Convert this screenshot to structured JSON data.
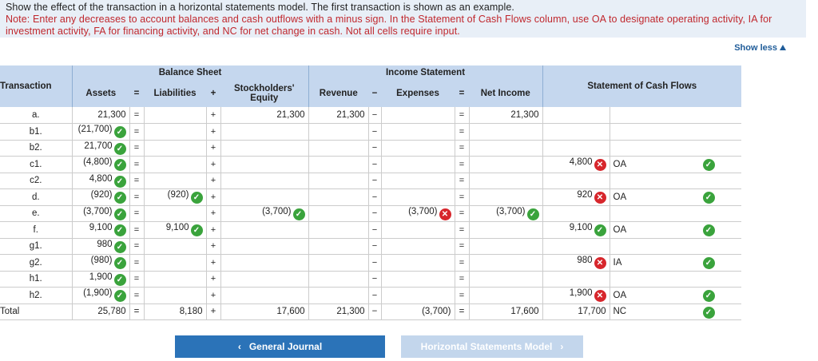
{
  "instructions": {
    "main": "Show the effect of the transaction in a horizontal statements model. The first transaction is shown as an example.",
    "note": "Note: Enter any decreases to account balances and cash outflows with a minus sign. In the Statement of Cash Flows column, use OA to designate operating activity, IA for investment activity, FA for financing activity, and NC for net change in cash. Not all cells require input."
  },
  "show_less": "Show less",
  "headers": {
    "transaction": "Transaction",
    "balance_sheet": "Balance Sheet",
    "income_statement": "Income Statement",
    "assets": "Assets",
    "eq": "=",
    "liabilities": "Liabilities",
    "plus": "+",
    "stockholders_equity": "Stockholders' Equity",
    "revenue": "Revenue",
    "minus": "−",
    "expenses": "Expenses",
    "net_income": "Net Income",
    "cash_flows": "Statement of Cash Flows"
  },
  "rows": [
    {
      "label": "a.",
      "assets": "21,300",
      "assets_status": "",
      "liab": "",
      "liab_status": "",
      "se": "21,300",
      "se_status": "",
      "rev": "21,300",
      "exp": "",
      "exp_status": "",
      "ni": "21,300",
      "ni_status": "",
      "cf": "",
      "cf_status": "",
      "act": "",
      "act_status": ""
    },
    {
      "label": "b1.",
      "assets": "(21,700)",
      "assets_status": "check",
      "liab": "",
      "liab_status": "",
      "se": "",
      "se_status": "",
      "rev": "",
      "exp": "",
      "exp_status": "",
      "ni": "",
      "ni_status": "",
      "cf": "",
      "cf_status": "",
      "act": "",
      "act_status": ""
    },
    {
      "label": "b2.",
      "assets": "21,700",
      "assets_status": "check",
      "liab": "",
      "liab_status": "",
      "se": "",
      "se_status": "",
      "rev": "",
      "exp": "",
      "exp_status": "",
      "ni": "",
      "ni_status": "",
      "cf": "",
      "cf_status": "",
      "act": "",
      "act_status": ""
    },
    {
      "label": "c1.",
      "assets": "(4,800)",
      "assets_status": "check",
      "liab": "",
      "liab_status": "",
      "se": "",
      "se_status": "",
      "rev": "",
      "exp": "",
      "exp_status": "",
      "ni": "",
      "ni_status": "",
      "cf": "4,800",
      "cf_status": "x",
      "act": "OA",
      "act_status": "check"
    },
    {
      "label": "c2.",
      "assets": "4,800",
      "assets_status": "check",
      "liab": "",
      "liab_status": "",
      "se": "",
      "se_status": "",
      "rev": "",
      "exp": "",
      "exp_status": "",
      "ni": "",
      "ni_status": "",
      "cf": "",
      "cf_status": "",
      "act": "",
      "act_status": ""
    },
    {
      "label": "d.",
      "assets": "(920)",
      "assets_status": "check",
      "liab": "(920)",
      "liab_status": "check",
      "se": "",
      "se_status": "",
      "rev": "",
      "exp": "",
      "exp_status": "",
      "ni": "",
      "ni_status": "",
      "cf": "920",
      "cf_status": "x",
      "act": "OA",
      "act_status": "check"
    },
    {
      "label": "e.",
      "assets": "(3,700)",
      "assets_status": "check",
      "liab": "",
      "liab_status": "",
      "se": "(3,700)",
      "se_status": "check",
      "rev": "",
      "exp": "(3,700)",
      "exp_status": "x",
      "ni": "(3,700)",
      "ni_status": "check",
      "cf": "",
      "cf_status": "",
      "act": "",
      "act_status": ""
    },
    {
      "label": "f.",
      "assets": "9,100",
      "assets_status": "check",
      "liab": "9,100",
      "liab_status": "check",
      "se": "",
      "se_status": "",
      "rev": "",
      "exp": "",
      "exp_status": "",
      "ni": "",
      "ni_status": "",
      "cf": "9,100",
      "cf_status": "check",
      "act": "OA",
      "act_status": "check"
    },
    {
      "label": "g1.",
      "assets": "980",
      "assets_status": "check",
      "liab": "",
      "liab_status": "",
      "se": "",
      "se_status": "",
      "rev": "",
      "exp": "",
      "exp_status": "",
      "ni": "",
      "ni_status": "",
      "cf": "",
      "cf_status": "",
      "act": "",
      "act_status": ""
    },
    {
      "label": "g2.",
      "assets": "(980)",
      "assets_status": "check",
      "liab": "",
      "liab_status": "",
      "se": "",
      "se_status": "",
      "rev": "",
      "exp": "",
      "exp_status": "",
      "ni": "",
      "ni_status": "",
      "cf": "980",
      "cf_status": "x",
      "act": "IA",
      "act_status": "check"
    },
    {
      "label": "h1.",
      "assets": "1,900",
      "assets_status": "check",
      "liab": "",
      "liab_status": "",
      "se": "",
      "se_status": "",
      "rev": "",
      "exp": "",
      "exp_status": "",
      "ni": "",
      "ni_status": "",
      "cf": "",
      "cf_status": "",
      "act": "",
      "act_status": ""
    },
    {
      "label": "h2.",
      "assets": "(1,900)",
      "assets_status": "check",
      "liab": "",
      "liab_status": "",
      "se": "",
      "se_status": "",
      "rev": "",
      "exp": "",
      "exp_status": "",
      "ni": "",
      "ni_status": "",
      "cf": "1,900",
      "cf_status": "x",
      "act": "OA",
      "act_status": "check"
    }
  ],
  "total": {
    "label": "Total",
    "assets": "25,780",
    "liab": "8,180",
    "se": "17,600",
    "rev": "21,300",
    "exp": "(3,700)",
    "ni": "17,600",
    "cf": "17,700",
    "act": "NC",
    "act_status": "check"
  },
  "buttons": {
    "prev": "General Journal",
    "next": "Horizontal Statements Model"
  },
  "colors": {
    "header_bg": "#c5d7ee",
    "check": "#3aa33c",
    "error": "#d7262c",
    "primary_button": "#2b73b8",
    "note_text": "#c0272d"
  }
}
